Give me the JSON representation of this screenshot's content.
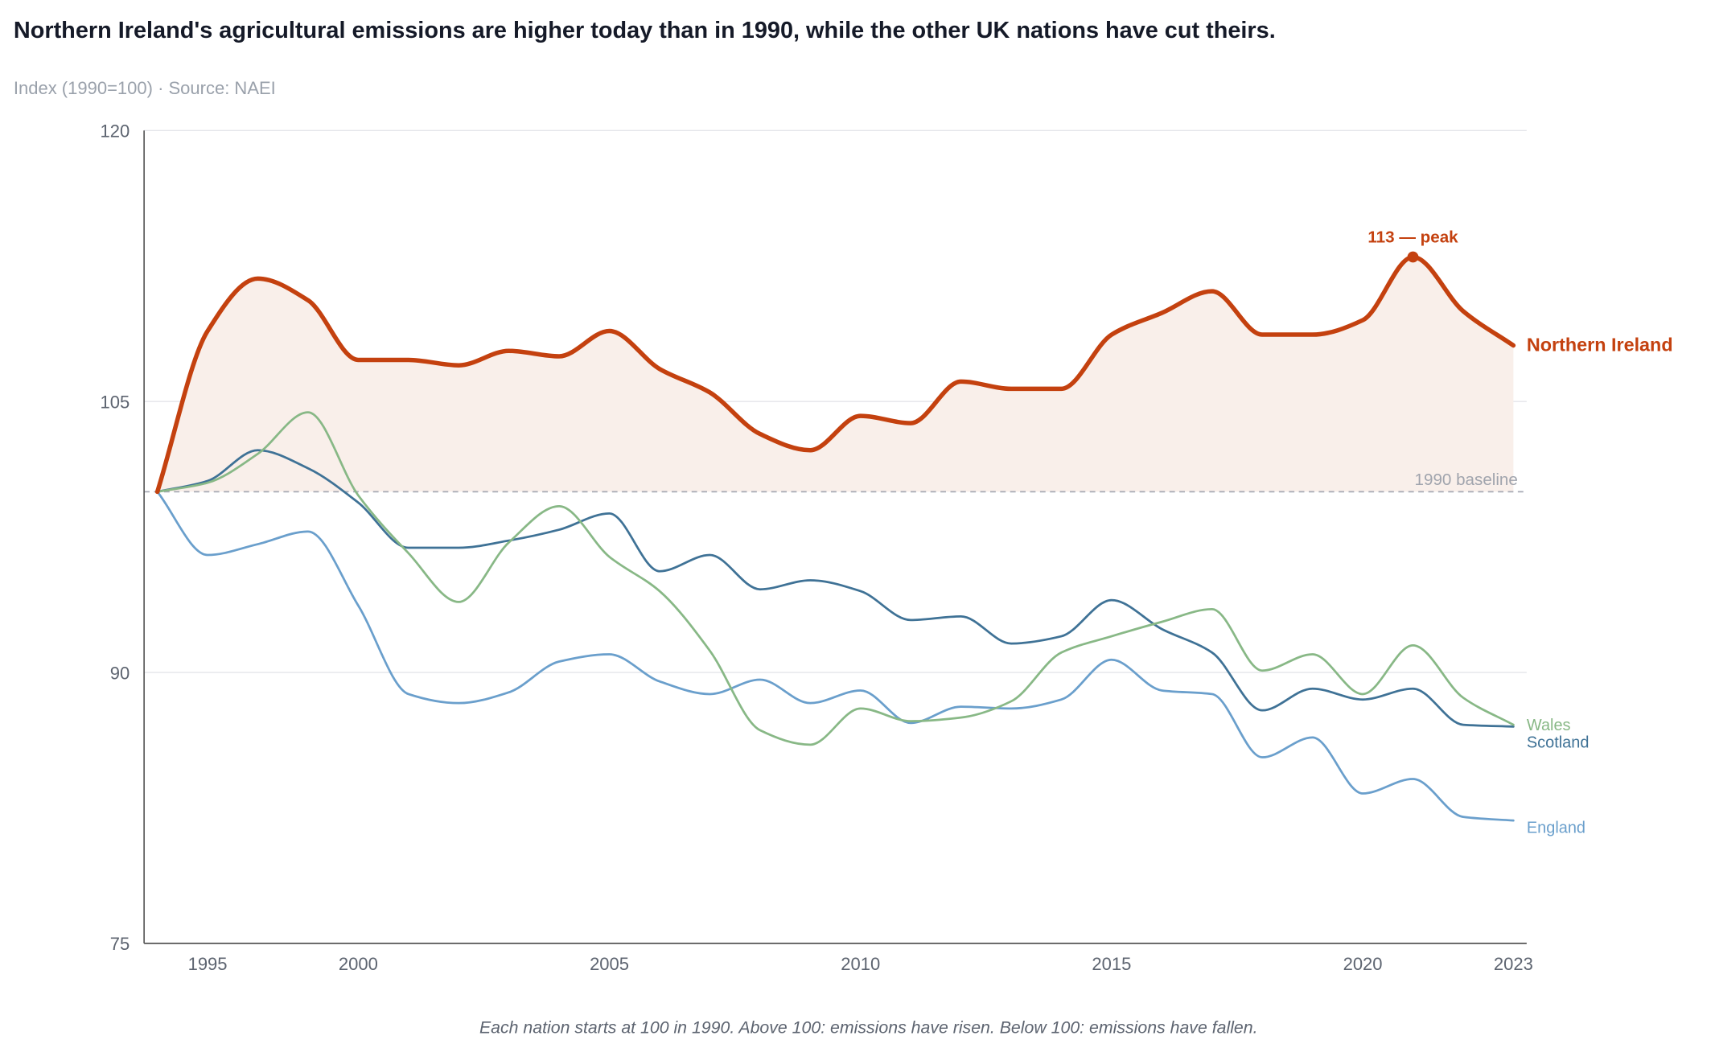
{
  "title": "Northern Ireland's agricultural emissions are higher today than in 1990, while the other UK nations have cut theirs.",
  "subtitle": "Index (1990=100) · Source: NAEI",
  "footnote": "Each nation starts at 100 in 1990. Above 100: emissions have risen. Below 100: emissions have fallen.",
  "chart_data": {
    "type": "line",
    "x_scale": "point",
    "x": [
      1990,
      1995,
      1998,
      1999,
      2000,
      2001,
      2002,
      2003,
      2004,
      2005,
      2006,
      2007,
      2008,
      2009,
      2010,
      2011,
      2012,
      2013,
      2014,
      2015,
      2016,
      2017,
      2018,
      2019,
      2020,
      2021,
      2022,
      2023
    ],
    "x_ticks": [
      "1995",
      "2000",
      "2005",
      "2010",
      "2015",
      "2020",
      "2023"
    ],
    "y_ticks": [
      "75",
      "90",
      "105",
      "120"
    ],
    "ylim": [
      75,
      120
    ],
    "grid": "horizontal",
    "baseline": {
      "value": 100,
      "label": "1990 baseline"
    },
    "annotation": {
      "label": "113 — peak",
      "x": 2021,
      "y": 113
    },
    "series": [
      {
        "name": "Northern Ireland",
        "color": "#c4410f",
        "highlight": true,
        "fill": "#f9efea",
        "values": [
          100,
          108.9,
          111.8,
          110.6,
          107.3,
          107.3,
          107.0,
          107.8,
          107.5,
          108.9,
          106.8,
          105.5,
          103.2,
          102.3,
          104.2,
          103.8,
          106.1,
          105.7,
          105.7,
          108.7,
          109.9,
          111.1,
          108.7,
          108.7,
          109.5,
          113.0,
          110.0,
          108.1
        ]
      },
      {
        "name": "Wales",
        "color": "#88b886",
        "values": [
          100,
          100.5,
          102.1,
          104.4,
          99.8,
          96.6,
          93.9,
          97.2,
          99.2,
          96.4,
          94.5,
          91.2,
          86.8,
          86.0,
          88.0,
          87.3,
          87.5,
          88.4,
          91.1,
          92.0,
          92.8,
          93.5,
          90.1,
          91.0,
          88.8,
          91.5,
          88.6,
          87.1
        ]
      },
      {
        "name": "Scotland",
        "color": "#3f7296",
        "values": [
          100,
          100.6,
          102.3,
          101.3,
          99.4,
          96.9,
          96.9,
          97.3,
          97.9,
          98.8,
          95.6,
          96.5,
          94.6,
          95.1,
          94.5,
          92.9,
          93.1,
          91.6,
          92.0,
          94.0,
          92.4,
          91.1,
          87.9,
          89.1,
          88.5,
          89.1,
          87.1,
          87.0
        ]
      },
      {
        "name": "England",
        "color": "#6a9fcc",
        "values": [
          100,
          96.5,
          97.1,
          97.8,
          93.7,
          88.8,
          88.3,
          88.9,
          90.6,
          91.0,
          89.5,
          88.8,
          89.6,
          88.3,
          89.0,
          87.2,
          88.1,
          88.0,
          88.5,
          90.7,
          89.0,
          88.8,
          85.3,
          86.4,
          83.3,
          84.1,
          82.0,
          81.8
        ]
      }
    ]
  }
}
